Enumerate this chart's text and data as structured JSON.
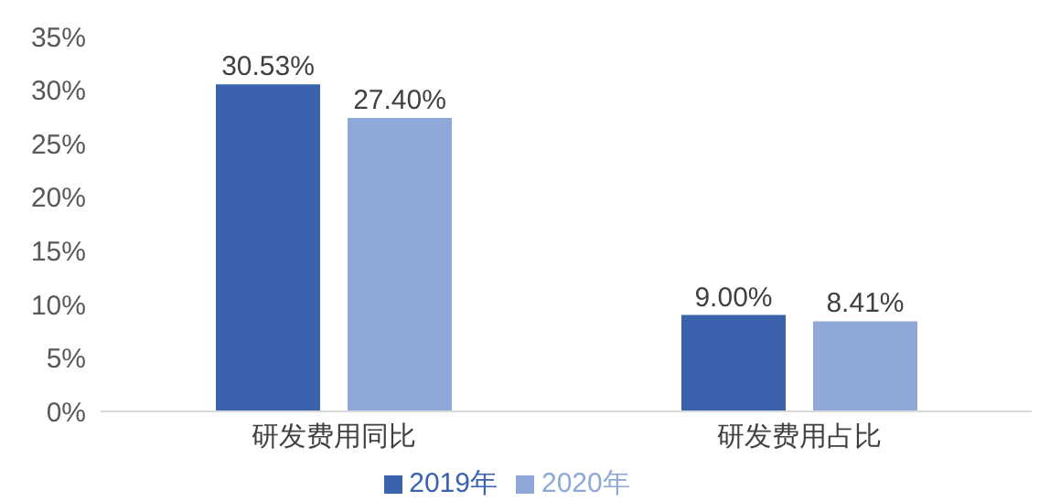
{
  "chart_data": {
    "type": "bar",
    "categories": [
      "研发费用同比",
      "研发费用占比"
    ],
    "series": [
      {
        "name": "2019年",
        "color": "#3a62ad",
        "values": [
          30.53,
          9.0
        ],
        "value_labels": [
          "30.53%",
          "9.00%"
        ]
      },
      {
        "name": "2020年",
        "color": "#8fa8d8",
        "values": [
          27.4,
          8.41
        ],
        "value_labels": [
          "27.40%",
          "8.41%"
        ]
      }
    ],
    "ylim": [
      0,
      35
    ],
    "yticks": [
      {
        "value": 0,
        "label": "0%"
      },
      {
        "value": 5,
        "label": "5%"
      },
      {
        "value": 10,
        "label": "10%"
      },
      {
        "value": 15,
        "label": "15%"
      },
      {
        "value": 20,
        "label": "20%"
      },
      {
        "value": 25,
        "label": "25%"
      },
      {
        "value": 30,
        "label": "30%"
      },
      {
        "value": 35,
        "label": "35%"
      }
    ],
    "grid": false,
    "legend": "bottom"
  }
}
